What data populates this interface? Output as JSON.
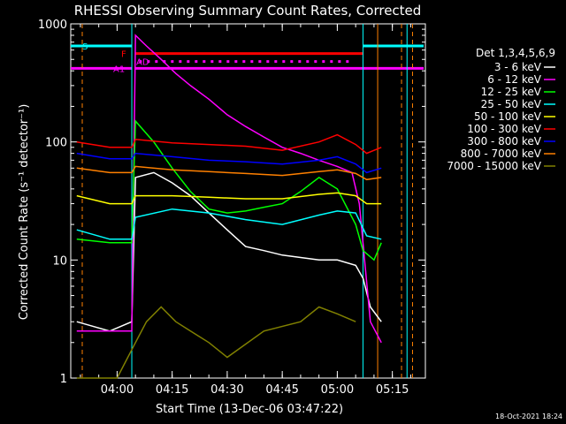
{
  "chart_data": {
    "type": "line",
    "title": "RHESSI Observing Summary Count Rates, Corrected",
    "xlabel": "Start Time (13-Dec-06 03:47:22)",
    "ylabel": "Corrected Count Rate (s⁻¹ detector⁻¹)",
    "footer": "18-Oct-2021 18:24",
    "y_scale": "log",
    "ylim": [
      1,
      1000
    ],
    "y_ticks": [
      1,
      10,
      100,
      1000
    ],
    "y_tick_labels": [
      "1",
      "10",
      "100",
      "1000"
    ],
    "xlim": [
      "03:47:22",
      "05:24:00"
    ],
    "x_ticks": [
      "04:00",
      "04:15",
      "04:30",
      "04:45",
      "05:00",
      "05:15"
    ],
    "legend_title": "Det 1,3,4,5,6,9",
    "legend_position": "right",
    "series": [
      {
        "name": "3 - 6 keV",
        "color": "#ffffff",
        "x": [
          "03:49:00",
          "03:58:00",
          "04:04:00",
          "04:05:00",
          "04:10:00",
          "04:15:00",
          "04:20:00",
          "04:25:00",
          "04:30:00",
          "04:35:00",
          "04:40:00",
          "04:45:00",
          "04:50:00",
          "04:55:00",
          "05:00:00",
          "05:05:00",
          "05:07:00",
          "05:09:00",
          "05:12:00"
        ],
        "values": [
          3,
          2.5,
          3,
          50,
          55,
          45,
          35,
          25,
          18,
          13,
          12,
          11,
          10.5,
          10,
          10,
          9,
          7,
          4,
          3
        ]
      },
      {
        "name": "6 - 12 keV",
        "color": "#ff00ff",
        "x": [
          "03:49:00",
          "03:58:00",
          "04:04:00",
          "04:05:00",
          "04:08:00",
          "04:12:00",
          "04:16:00",
          "04:20:00",
          "04:25:00",
          "04:30:00",
          "04:35:00",
          "04:40:00",
          "04:45:00",
          "04:50:00",
          "04:55:00",
          "05:00:00",
          "05:04:00",
          "05:06:00",
          "05:09:00",
          "05:12:00"
        ],
        "values": [
          2.5,
          2.5,
          2.5,
          800,
          650,
          500,
          380,
          300,
          230,
          170,
          135,
          110,
          90,
          80,
          70,
          62,
          55,
          30,
          3,
          2
        ]
      },
      {
        "name": "12 - 25 keV",
        "color": "#00ff00",
        "x": [
          "03:49:00",
          "03:58:00",
          "04:04:00",
          "04:05:00",
          "04:10:00",
          "04:15:00",
          "04:20:00",
          "04:25:00",
          "04:30:00",
          "04:35:00",
          "04:40:00",
          "04:45:00",
          "04:50:00",
          "04:55:00",
          "05:00:00",
          "05:05:00",
          "05:07:00",
          "05:10:00",
          "05:12:00"
        ],
        "values": [
          15,
          14,
          14,
          150,
          100,
          60,
          38,
          27,
          25,
          26,
          28,
          30,
          38,
          50,
          40,
          20,
          12,
          10,
          14
        ]
      },
      {
        "name": "25 - 50 keV",
        "color": "#00ffff",
        "x": [
          "03:49:00",
          "03:58:00",
          "04:04:00",
          "04:05:00",
          "04:15:00",
          "04:25:00",
          "04:35:00",
          "04:45:00",
          "04:55:00",
          "05:00:00",
          "05:05:00",
          "05:08:00",
          "05:12:00"
        ],
        "values": [
          18,
          15,
          15,
          23,
          27,
          25,
          22,
          20,
          24,
          26,
          25,
          16,
          15
        ]
      },
      {
        "name": "50 - 100 keV",
        "color": "#ffff00",
        "x": [
          "03:49:00",
          "03:58:00",
          "04:04:00",
          "04:05:00",
          "04:15:00",
          "04:25:00",
          "04:35:00",
          "04:45:00",
          "04:55:00",
          "05:00:00",
          "05:05:00",
          "05:08:00",
          "05:12:00"
        ],
        "values": [
          35,
          30,
          30,
          35,
          35,
          34,
          33,
          33,
          36,
          37,
          35,
          30,
          30
        ]
      },
      {
        "name": "100 - 300 keV",
        "color": "#ff0000",
        "x": [
          "03:49:00",
          "03:58:00",
          "04:04:00",
          "04:05:00",
          "04:15:00",
          "04:25:00",
          "04:35:00",
          "04:45:00",
          "04:55:00",
          "05:00:00",
          "05:05:00",
          "05:08:00",
          "05:12:00"
        ],
        "values": [
          100,
          90,
          90,
          105,
          98,
          95,
          92,
          85,
          100,
          115,
          95,
          80,
          90
        ]
      },
      {
        "name": "300 - 800 keV",
        "color": "#0000ff",
        "x": [
          "03:49:00",
          "03:58:00",
          "04:04:00",
          "04:05:00",
          "04:15:00",
          "04:25:00",
          "04:35:00",
          "04:45:00",
          "04:55:00",
          "05:00:00",
          "05:05:00",
          "05:08:00",
          "05:12:00"
        ],
        "values": [
          80,
          72,
          72,
          80,
          75,
          70,
          68,
          65,
          70,
          75,
          65,
          55,
          60
        ]
      },
      {
        "name": "800 - 7000 keV",
        "color": "#ff8000",
        "x": [
          "03:49:00",
          "03:58:00",
          "04:04:00",
          "04:05:00",
          "04:15:00",
          "04:25:00",
          "04:35:00",
          "04:45:00",
          "04:55:00",
          "05:00:00",
          "05:05:00",
          "05:08:00",
          "05:12:00"
        ],
        "values": [
          60,
          55,
          55,
          62,
          58,
          56,
          54,
          52,
          56,
          58,
          54,
          48,
          50
        ]
      },
      {
        "name": "7000 - 15000 keV",
        "color": "#808000",
        "x": [
          "03:49:00",
          "04:00:00",
          "04:05:00",
          "04:08:00",
          "04:12:00",
          "04:16:00",
          "04:20:00",
          "04:25:00",
          "04:30:00",
          "04:40:00",
          "04:50:00",
          "04:55:00",
          "05:00:00",
          "05:05:00"
        ],
        "values": [
          1,
          1,
          2,
          3,
          4,
          3,
          2.5,
          2,
          1.5,
          2.5,
          3,
          4,
          3.5,
          3
        ]
      }
    ],
    "flags": [
      {
        "label": "S",
        "color": "#00ffff",
        "y": 650
      },
      {
        "label": "F",
        "color": "#ff0000",
        "y": 560
      },
      {
        "label": "AD",
        "color": "#ff00ff",
        "y": 480
      },
      {
        "label": "A1",
        "color": "#ff00ff",
        "y": 420
      }
    ]
  }
}
